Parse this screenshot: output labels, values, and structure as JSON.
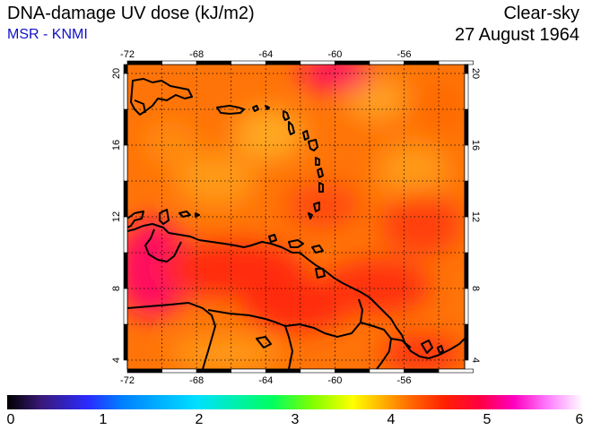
{
  "header": {
    "title": "DNA-damage UV dose (kJ/m2)",
    "subtitle": "MSR - KNMI",
    "condition": "Clear-sky",
    "date": "27 August 1964"
  },
  "map": {
    "lon_ticks": [
      "-72",
      "-68",
      "-64",
      "-60",
      "-56"
    ],
    "lat_ticks": [
      "4",
      "8",
      "12",
      "16",
      "20"
    ],
    "lon_range": [
      -72,
      -52.5
    ],
    "lat_range": [
      3.5,
      20.5
    ],
    "colors": {
      "base": "#ff6a00",
      "high": "#ff2000",
      "peak": "#ff0060",
      "low": "#ff9a10"
    }
  },
  "colorbar": {
    "tick_labels": [
      "0",
      "1",
      "2",
      "3",
      "4",
      "5",
      "6"
    ],
    "range": [
      0,
      6
    ]
  }
}
